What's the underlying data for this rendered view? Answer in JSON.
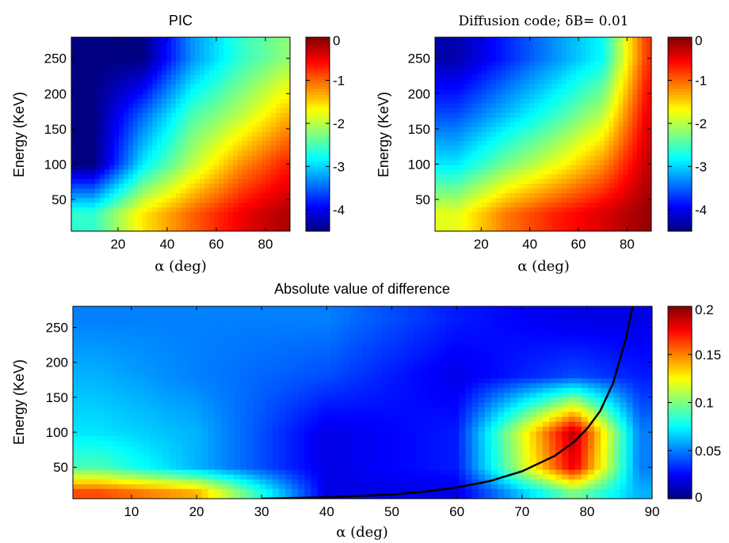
{
  "chart_data": [
    {
      "type": "heatmap",
      "title": "PIC",
      "xlabel": "α (deg)",
      "ylabel": "Energy (KeV)",
      "xlim": [
        1,
        90
      ],
      "ylim": [
        5,
        280
      ],
      "xticks": [
        20,
        40,
        60,
        80
      ],
      "yticks": [
        50,
        100,
        150,
        200,
        250
      ],
      "colorbar": {
        "min": -4.5,
        "max": 0,
        "ticks": [
          0,
          -1,
          -2,
          -3,
          -4
        ],
        "colormap": "jet"
      },
      "z_samples": {
        "alpha": [
          10,
          30,
          50,
          70,
          88
        ],
        "energy": [
          30,
          100,
          170,
          250
        ],
        "values": [
          [
            -2.6,
            -1.6,
            -1.0,
            -0.5,
            -0.2
          ],
          [
            -4.5,
            -2.9,
            -2.0,
            -1.2,
            -0.7
          ],
          [
            -4.5,
            -3.5,
            -2.5,
            -2.0,
            -1.4
          ],
          [
            -4.5,
            -4.5,
            -3.3,
            -2.6,
            -2.2
          ]
        ]
      }
    },
    {
      "type": "heatmap",
      "title": "Diffusion code; δB= 0.01",
      "xlabel": "α (deg)",
      "ylabel": "Energy (KeV)",
      "xlim": [
        1,
        90
      ],
      "ylim": [
        5,
        280
      ],
      "xticks": [
        20,
        40,
        60,
        80
      ],
      "yticks": [
        50,
        100,
        150,
        200,
        250
      ],
      "colorbar": {
        "min": -4.5,
        "max": 0,
        "ticks": [
          0,
          -1,
          -2,
          -3,
          -4
        ],
        "colormap": "jet"
      },
      "z_samples": {
        "alpha": [
          10,
          30,
          50,
          70,
          88
        ],
        "energy": [
          30,
          100,
          170,
          250
        ],
        "values": [
          [
            -1.8,
            -1.1,
            -0.7,
            -0.4,
            -0.1
          ],
          [
            -2.9,
            -2.3,
            -1.8,
            -1.2,
            -0.3
          ],
          [
            -3.6,
            -3.1,
            -2.6,
            -2.0,
            -0.5
          ],
          [
            -4.3,
            -3.8,
            -3.3,
            -2.8,
            -0.8
          ]
        ]
      }
    },
    {
      "type": "heatmap",
      "title": "Absolute value of difference",
      "xlabel": "α (deg)",
      "ylabel": "Energy (KeV)",
      "xlim": [
        1,
        90
      ],
      "ylim": [
        5,
        280
      ],
      "xticks": [
        10,
        20,
        30,
        40,
        50,
        60,
        70,
        80,
        90
      ],
      "yticks": [
        50,
        100,
        150,
        200,
        250
      ],
      "colorbar": {
        "min": 0,
        "max": 0.2,
        "ticks": [
          0.2,
          0.15,
          0.1,
          0.05,
          0
        ],
        "colormap": "jet"
      },
      "z_samples": {
        "alpha": [
          5,
          20,
          40,
          60,
          78,
          88
        ],
        "energy": [
          15,
          50,
          100,
          180,
          260
        ],
        "values": [
          [
            0.16,
            0.14,
            0.02,
            0.02,
            0.1,
            0.06
          ],
          [
            0.09,
            0.06,
            0.02,
            0.03,
            0.18,
            0.05
          ],
          [
            0.07,
            0.06,
            0.02,
            0.03,
            0.19,
            0.05
          ],
          [
            0.06,
            0.05,
            0.04,
            0.02,
            0.04,
            0.03
          ],
          [
            0.05,
            0.05,
            0.05,
            0.03,
            0.02,
            0.02
          ]
        ]
      },
      "overlay_curve": {
        "x": [
          30,
          40,
          50,
          55,
          60,
          65,
          70,
          75,
          78,
          80,
          82,
          84,
          86,
          87
        ],
        "y": [
          5,
          7,
          11,
          15,
          21,
          30,
          44,
          66,
          86,
          105,
          130,
          170,
          235,
          280
        ]
      }
    }
  ]
}
